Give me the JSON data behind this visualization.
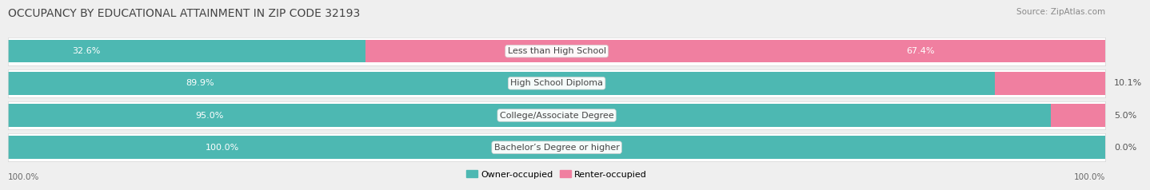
{
  "title": "OCCUPANCY BY EDUCATIONAL ATTAINMENT IN ZIP CODE 32193",
  "source": "Source: ZipAtlas.com",
  "categories": [
    "Less than High School",
    "High School Diploma",
    "College/Associate Degree",
    "Bachelor’s Degree or higher"
  ],
  "owner_values": [
    32.6,
    89.9,
    95.0,
    100.0
  ],
  "renter_values": [
    67.4,
    10.1,
    5.0,
    0.0
  ],
  "owner_color": "#4db8b2",
  "renter_color": "#f07fa0",
  "bg_color": "#efefef",
  "row_bg_color": "#ffffff",
  "row_border_color": "#d8d8d8",
  "title_fontsize": 10,
  "label_fontsize": 8,
  "value_fontsize": 8,
  "source_fontsize": 7.5,
  "tick_fontsize": 7.5
}
